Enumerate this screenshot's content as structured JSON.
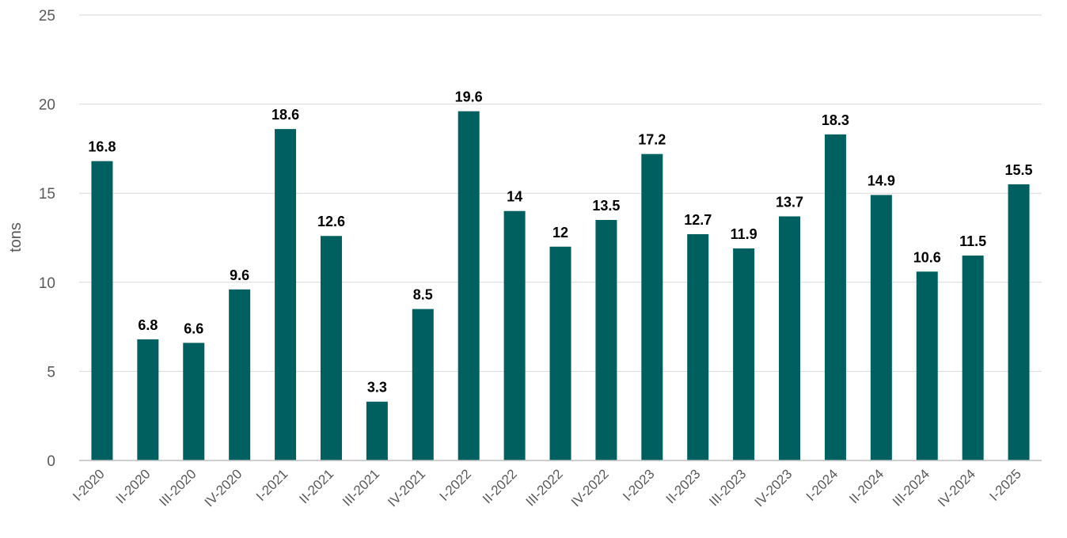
{
  "chart_data": {
    "type": "bar",
    "ylabel": "tons",
    "ylim": [
      0,
      25
    ],
    "yticks": [
      0,
      5,
      10,
      15,
      20,
      25
    ],
    "grid": true,
    "bar_color": "#005F5F",
    "categories": [
      "I-2020",
      "II-2020",
      "III-2020",
      "IV-2020",
      "I-2021",
      "II-2021",
      "III-2021",
      "IV-2021",
      "I-2022",
      "II-2022",
      "III-2022",
      "IV-2022",
      "I-2023",
      "II-2023",
      "III-2023",
      "IV-2023",
      "I-2024",
      "II-2024",
      "III-2024",
      "IV-2024",
      "I-2025"
    ],
    "values": [
      16.8,
      6.8,
      6.6,
      9.6,
      18.6,
      12.6,
      3.3,
      8.5,
      19.6,
      14,
      12,
      13.5,
      17.2,
      12.7,
      11.9,
      13.7,
      18.3,
      14.9,
      10.6,
      11.5,
      15.5
    ],
    "value_labels": [
      "16.8",
      "6.8",
      "6.6",
      "9.6",
      "18.6",
      "12.6",
      "3.3",
      "8.5",
      "19.6",
      "14",
      "12",
      "13.5",
      "17.2",
      "12.7",
      "11.9",
      "13.7",
      "18.3",
      "14.9",
      "10.6",
      "11.5",
      "15.5"
    ]
  }
}
